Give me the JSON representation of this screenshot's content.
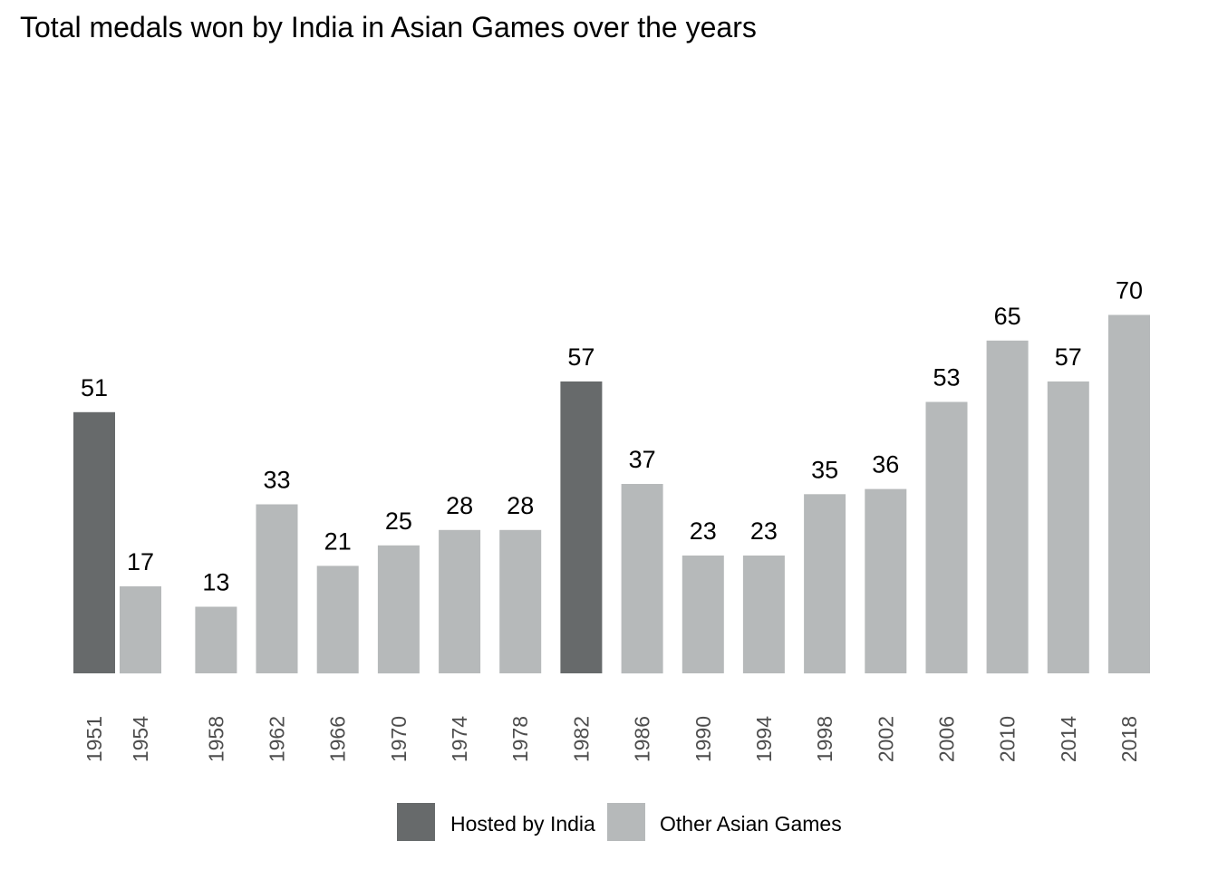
{
  "chart_data": {
    "type": "bar",
    "title": "Total medals won by India in Asian Games over the years",
    "xlabel": "",
    "ylabel": "",
    "ylim": [
      0,
      80
    ],
    "grid": false,
    "legend_position": "bottom",
    "categories": [
      "1951",
      "1954",
      "1958",
      "1962",
      "1966",
      "1970",
      "1974",
      "1978",
      "1982",
      "1986",
      "1990",
      "1994",
      "1998",
      "2002",
      "2006",
      "2010",
      "2014",
      "2018"
    ],
    "values": [
      51,
      17,
      13,
      33,
      21,
      25,
      28,
      28,
      57,
      37,
      23,
      23,
      35,
      36,
      53,
      65,
      57,
      70
    ],
    "groups": [
      "Hosted by India",
      "Other Asian Games",
      "Other Asian Games",
      "Other Asian Games",
      "Other Asian Games",
      "Other Asian Games",
      "Other Asian Games",
      "Other Asian Games",
      "Hosted by India",
      "Other Asian Games",
      "Other Asian Games",
      "Other Asian Games",
      "Other Asian Games",
      "Other Asian Games",
      "Other Asian Games",
      "Other Asian Games",
      "Other Asian Games",
      "Other Asian Games"
    ],
    "legend": [
      {
        "name": "Hosted by India",
        "color": "#676a6b"
      },
      {
        "name": "Other Asian Games",
        "color": "#b6b9ba"
      }
    ]
  }
}
